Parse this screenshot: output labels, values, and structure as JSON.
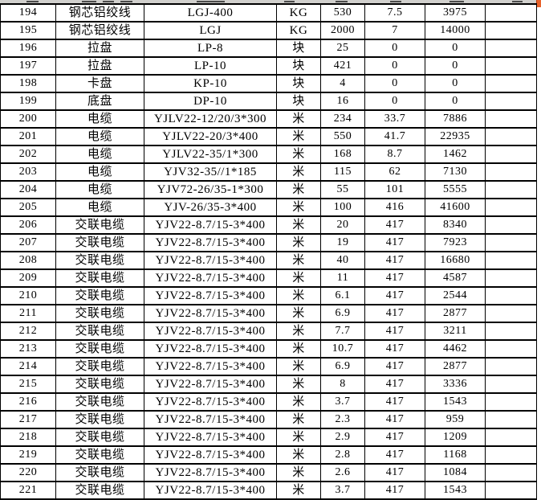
{
  "accents": {
    "grid_color": "#000000",
    "top_strip_color": "#d1d0cd",
    "corner_marker_color": "#e8632c",
    "cell_background": "#ffffff",
    "text_color": "#000000"
  },
  "table": {
    "column_names": [
      "row-number",
      "item-name",
      "model-spec",
      "unit",
      "quantity",
      "unit-price",
      "amount",
      "notes"
    ],
    "rows": [
      [
        "194",
        "钢芯铝绞线",
        "LGJ-400",
        "KG",
        "530",
        "7.5",
        "3975",
        ""
      ],
      [
        "195",
        "钢芯铝绞线",
        "LGJ",
        "KG",
        "2000",
        "7",
        "14000",
        ""
      ],
      [
        "196",
        "拉盘",
        "LP-8",
        "块",
        "25",
        "0",
        "0",
        ""
      ],
      [
        "197",
        "拉盘",
        "LP-10",
        "块",
        "421",
        "0",
        "0",
        ""
      ],
      [
        "198",
        "卡盘",
        "KP-10",
        "块",
        "4",
        "0",
        "0",
        ""
      ],
      [
        "199",
        "底盘",
        "DP-10",
        "块",
        "16",
        "0",
        "0",
        ""
      ],
      [
        "200",
        "电缆",
        "YJLV22-12/20/3*300",
        "米",
        "234",
        "33.7",
        "7886",
        ""
      ],
      [
        "201",
        "电缆",
        "YJLV22-20/3*400",
        "米",
        "550",
        "41.7",
        "22935",
        ""
      ],
      [
        "202",
        "电缆",
        "YJLV22-35/1*300",
        "米",
        "168",
        "8.7",
        "1462",
        ""
      ],
      [
        "203",
        "电缆",
        "YJV32-35//1*185",
        "米",
        "115",
        "62",
        "7130",
        ""
      ],
      [
        "204",
        "电缆",
        "YJV72-26/35-1*300",
        "米",
        "55",
        "101",
        "5555",
        ""
      ],
      [
        "205",
        "电缆",
        "YJV-26/35-3*400",
        "米",
        "100",
        "416",
        "41600",
        ""
      ],
      [
        "206",
        "交联电缆",
        "YJV22-8.7/15-3*400",
        "米",
        "20",
        "417",
        "8340",
        ""
      ],
      [
        "207",
        "交联电缆",
        "YJV22-8.7/15-3*400",
        "米",
        "19",
        "417",
        "7923",
        ""
      ],
      [
        "208",
        "交联电缆",
        "YJV22-8.7/15-3*400",
        "米",
        "40",
        "417",
        "16680",
        ""
      ],
      [
        "209",
        "交联电缆",
        "YJV22-8.7/15-3*400",
        "米",
        "11",
        "417",
        "4587",
        ""
      ],
      [
        "210",
        "交联电缆",
        "YJV22-8.7/15-3*400",
        "米",
        "6.1",
        "417",
        "2544",
        ""
      ],
      [
        "211",
        "交联电缆",
        "YJV22-8.7/15-3*400",
        "米",
        "6.9",
        "417",
        "2877",
        ""
      ],
      [
        "212",
        "交联电缆",
        "YJV22-8.7/15-3*400",
        "米",
        "7.7",
        "417",
        "3211",
        ""
      ],
      [
        "213",
        "交联电缆",
        "YJV22-8.7/15-3*400",
        "米",
        "10.7",
        "417",
        "4462",
        ""
      ],
      [
        "214",
        "交联电缆",
        "YJV22-8.7/15-3*400",
        "米",
        "6.9",
        "417",
        "2877",
        ""
      ],
      [
        "215",
        "交联电缆",
        "YJV22-8.7/15-3*400",
        "米",
        "8",
        "417",
        "3336",
        ""
      ],
      [
        "216",
        "交联电缆",
        "YJV22-8.7/15-3*400",
        "米",
        "3.7",
        "417",
        "1543",
        ""
      ],
      [
        "217",
        "交联电缆",
        "YJV22-8.7/15-3*400",
        "米",
        "2.3",
        "417",
        "959",
        ""
      ],
      [
        "218",
        "交联电缆",
        "YJV22-8.7/15-3*400",
        "米",
        "2.9",
        "417",
        "1209",
        ""
      ],
      [
        "219",
        "交联电缆",
        "YJV22-8.7/15-3*400",
        "米",
        "2.8",
        "417",
        "1168",
        ""
      ],
      [
        "220",
        "交联电缆",
        "YJV22-8.7/15-3*400",
        "米",
        "2.6",
        "417",
        "1084",
        ""
      ],
      [
        "221",
        "交联电缆",
        "YJV22-8.7/15-3*400",
        "米",
        "3.7",
        "417",
        "1543",
        ""
      ],
      [
        "",
        "",
        "",
        "",
        "",
        "",
        "",
        ""
      ]
    ]
  }
}
